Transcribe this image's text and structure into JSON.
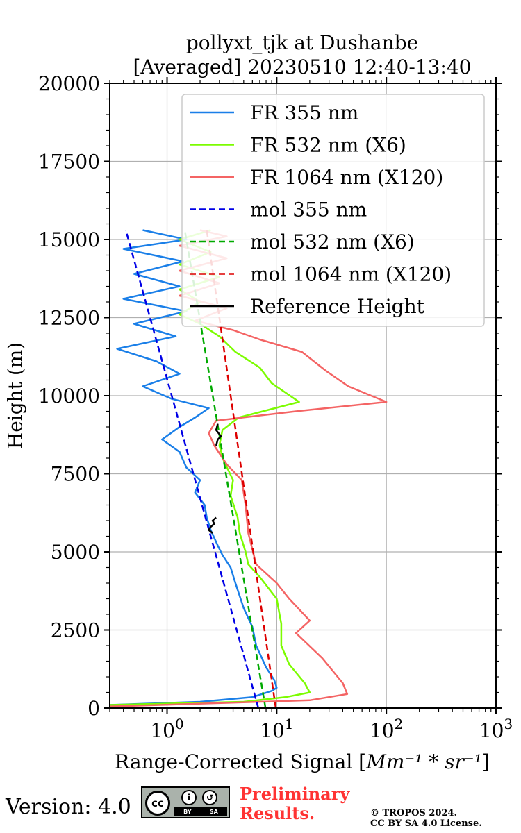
{
  "chart_data": {
    "type": "line",
    "title": [
      "pollyxt_tjk at Dushanbe",
      "[Averaged] 20230510 12:40-13:40"
    ],
    "xlabel": "Range-Corrected Signal [",
    "xlabel_math": "Mm⁻¹ * sr⁻¹",
    "xlabel_end": "]",
    "ylabel": "Height (m)",
    "xscale": "log",
    "xlim": [
      0.3,
      1000
    ],
    "ylim": [
      0,
      20000
    ],
    "grid": true,
    "legend_position": "upper-right",
    "x_ticks": [
      {
        "value": 1,
        "base": "10",
        "exp": "0"
      },
      {
        "value": 10,
        "base": "10",
        "exp": "1"
      },
      {
        "value": 100,
        "base": "10",
        "exp": "2"
      },
      {
        "value": 1000,
        "base": "10",
        "exp": "3"
      }
    ],
    "y_ticks": [
      "0",
      "2500",
      "5000",
      "7500",
      "10000",
      "12500",
      "15000",
      "17500",
      "20000"
    ],
    "series": [
      {
        "name": "FR 355 nm",
        "color": "#1a7fe8",
        "dash": "solid",
        "points": [
          [
            0.3,
            100
          ],
          [
            2,
            200
          ],
          [
            6,
            350
          ],
          [
            9,
            550
          ],
          [
            10,
            650
          ],
          [
            9.5,
            900
          ],
          [
            8,
            1300
          ],
          [
            6.5,
            2000
          ],
          [
            6,
            2600
          ],
          [
            5,
            3200
          ],
          [
            4.2,
            4000
          ],
          [
            3.8,
            4500
          ],
          [
            3.2,
            4900
          ],
          [
            2.9,
            5200
          ],
          [
            2.5,
            5700
          ],
          [
            2.3,
            6100
          ],
          [
            2.2,
            6500
          ],
          [
            1.8,
            6900
          ],
          [
            2,
            7300
          ],
          [
            1.5,
            7700
          ],
          [
            1.3,
            8200
          ],
          [
            0.9,
            8600
          ],
          [
            1.3,
            9000
          ],
          [
            1.8,
            9300
          ],
          [
            2.4,
            9600
          ],
          [
            1.1,
            9900
          ],
          [
            0.6,
            10300
          ],
          [
            1.3,
            10700
          ],
          [
            0.8,
            11100
          ],
          [
            0.35,
            11500
          ],
          [
            1.2,
            11900
          ],
          [
            0.5,
            12300
          ],
          [
            1.5,
            12700
          ],
          [
            0.4,
            13100
          ],
          [
            1.3,
            13500
          ],
          [
            0.5,
            13900
          ],
          [
            1.4,
            14300
          ],
          [
            0.4,
            14700
          ],
          [
            1.5,
            15000
          ],
          [
            0.6,
            15300
          ]
        ]
      },
      {
        "name": "FR 532 nm (X6)",
        "color": "#7cfc00",
        "dash": "solid",
        "points": [
          [
            0.3,
            100
          ],
          [
            5,
            200
          ],
          [
            12,
            350
          ],
          [
            20,
            500
          ],
          [
            18,
            800
          ],
          [
            13,
            1400
          ],
          [
            11,
            2000
          ],
          [
            11,
            2700
          ],
          [
            10,
            3500
          ],
          [
            7,
            4200
          ],
          [
            5.5,
            4600
          ],
          [
            5.2,
            5000
          ],
          [
            4.6,
            5600
          ],
          [
            4.4,
            6100
          ],
          [
            3.8,
            6800
          ],
          [
            4,
            7300
          ],
          [
            3.3,
            7900
          ],
          [
            3,
            8400
          ],
          [
            3.2,
            8900
          ],
          [
            4.5,
            9300
          ],
          [
            16,
            9800
          ],
          [
            9,
            10400
          ],
          [
            7,
            10900
          ],
          [
            4.2,
            11400
          ],
          [
            3,
            11900
          ],
          [
            2,
            12300
          ],
          [
            1.3,
            12600
          ],
          [
            2,
            13000
          ],
          [
            1.3,
            13400
          ],
          [
            3,
            13800
          ],
          [
            1.3,
            14200
          ],
          [
            2.5,
            14600
          ],
          [
            1.3,
            15000
          ],
          [
            2.5,
            15300
          ]
        ]
      },
      {
        "name": "FR 1064 nm (X120)",
        "color": "#f46464",
        "dash": "solid",
        "points": [
          [
            0.3,
            50
          ],
          [
            20,
            250
          ],
          [
            44,
            450
          ],
          [
            40,
            800
          ],
          [
            26,
            1600
          ],
          [
            15,
            2400
          ],
          [
            20,
            2800
          ],
          [
            13,
            3500
          ],
          [
            10,
            4000
          ],
          [
            6.5,
            4600
          ],
          [
            5.5,
            5600
          ],
          [
            5.2,
            6500
          ],
          [
            4.8,
            7300
          ],
          [
            3.5,
            7800
          ],
          [
            2.7,
            8400
          ],
          [
            2.4,
            8800
          ],
          [
            2.8,
            9200
          ],
          [
            15,
            9500
          ],
          [
            100,
            9800
          ],
          [
            45,
            10300
          ],
          [
            28,
            10800
          ],
          [
            17,
            11400
          ],
          [
            7,
            11800
          ],
          [
            4,
            12100
          ],
          [
            1.8,
            12400
          ],
          [
            3.5,
            12800
          ],
          [
            1.3,
            13200
          ],
          [
            3,
            13600
          ],
          [
            1.3,
            14000
          ],
          [
            3.5,
            14400
          ],
          [
            1.3,
            14800
          ],
          [
            3.5,
            15100
          ],
          [
            2,
            15300
          ]
        ]
      },
      {
        "name": "mol 355 nm",
        "color": "#0000e6",
        "dash": "dashed",
        "points": [
          [
            6.8,
            0
          ],
          [
            0.42,
            15300
          ]
        ]
      },
      {
        "name": "mol 532 nm (X6)",
        "color": "#00aa00",
        "dash": "dashed",
        "points": [
          [
            7.9,
            0
          ],
          [
            1.45,
            15300
          ]
        ]
      },
      {
        "name": "mol 1064 nm (X120)",
        "color": "#dd0000",
        "dash": "dashed",
        "points": [
          [
            9.8,
            0
          ],
          [
            2.3,
            15300
          ]
        ]
      },
      {
        "name": "Reference Height",
        "color": "#000000",
        "dash": "solid",
        "segments": [
          [
            [
              2.6,
              5600
            ],
            [
              2.4,
              5700
            ],
            [
              2.5,
              5800
            ],
            [
              2.7,
              5900
            ],
            [
              2.6,
              6000
            ],
            [
              2.8,
              6100
            ]
          ],
          [
            [
              2.8,
              8400
            ],
            [
              2.9,
              8600
            ],
            [
              3.1,
              8700
            ],
            [
              2.8,
              8900
            ],
            [
              2.9,
              9100
            ]
          ]
        ]
      }
    ]
  },
  "footer": {
    "version": "Version: 4.0",
    "cc_text": "cc",
    "by_label": "BY",
    "sa_label": "SA",
    "preliminary": [
      "Preliminary",
      "Results."
    ],
    "copyright": [
      "© TROPOS 2024.",
      "CC BY SA 4.0 License."
    ]
  }
}
